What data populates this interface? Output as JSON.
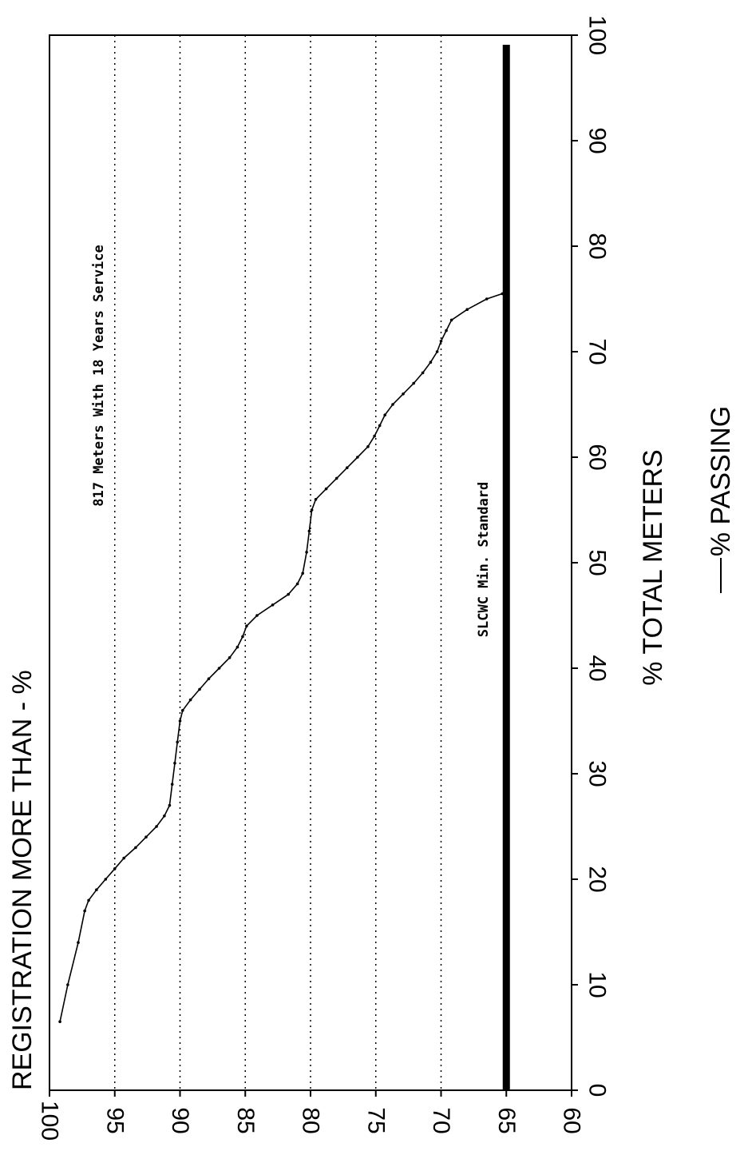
{
  "chart_data": {
    "type": "line",
    "title": "REGISTRATION MORE THAN - %",
    "xlabel": "% TOTAL METERS",
    "legend": "% PASSING",
    "annotations": {
      "meters": "817 Meters With 18 Years Service",
      "standard": "SLCWC Min. Standard"
    },
    "xlim": [
      0,
      100
    ],
    "ylim": [
      60,
      100
    ],
    "x_ticks": [
      "0",
      "10",
      "20",
      "30",
      "40",
      "50",
      "60",
      "70",
      "80",
      "90",
      "100"
    ],
    "y_ticks": [
      "100",
      "95",
      "90",
      "85",
      "80",
      "75",
      "70",
      "65",
      "60"
    ],
    "grid": "dotted horizontal lines at 95, 90, 85, 80, 75, 70",
    "standard_value": 65,
    "series": [
      {
        "points": [
          [
            6.5,
            99.2
          ],
          [
            10,
            98.6
          ],
          [
            14,
            97.8
          ],
          [
            17,
            97.3
          ],
          [
            18,
            97.0
          ],
          [
            19,
            96.4
          ],
          [
            20,
            95.7
          ],
          [
            21,
            95.0
          ],
          [
            22,
            94.3
          ],
          [
            23,
            93.4
          ],
          [
            24,
            92.6
          ],
          [
            25,
            91.8
          ],
          [
            26,
            91.2
          ],
          [
            27,
            90.8
          ],
          [
            29,
            90.6
          ],
          [
            31,
            90.4
          ],
          [
            33,
            90.2
          ],
          [
            35,
            90.0
          ],
          [
            36,
            89.8
          ],
          [
            37,
            89.2
          ],
          [
            38,
            88.5
          ],
          [
            39,
            87.8
          ],
          [
            40,
            87.0
          ],
          [
            41,
            86.2
          ],
          [
            42,
            85.6
          ],
          [
            43,
            85.2
          ],
          [
            44,
            84.9
          ],
          [
            45,
            84.1
          ],
          [
            46,
            82.9
          ],
          [
            47,
            81.7
          ],
          [
            48,
            81.0
          ],
          [
            49,
            80.6
          ],
          [
            51,
            80.3
          ],
          [
            53,
            80.1
          ],
          [
            55,
            79.9
          ],
          [
            56,
            79.6
          ],
          [
            57,
            78.8
          ],
          [
            58,
            78.0
          ],
          [
            59,
            77.2
          ],
          [
            60,
            76.4
          ],
          [
            61,
            75.6
          ],
          [
            62,
            75.1
          ],
          [
            63,
            74.7
          ],
          [
            64,
            74.3
          ],
          [
            65,
            73.7
          ],
          [
            66,
            72.9
          ],
          [
            67,
            72.1
          ],
          [
            68,
            71.4
          ],
          [
            69,
            70.8
          ],
          [
            70,
            70.3
          ],
          [
            71,
            70.0
          ],
          [
            72,
            69.6
          ],
          [
            73,
            69.2
          ],
          [
            74,
            68.0
          ],
          [
            75,
            66.5
          ],
          [
            75.5,
            65.3
          ]
        ]
      }
    ]
  }
}
